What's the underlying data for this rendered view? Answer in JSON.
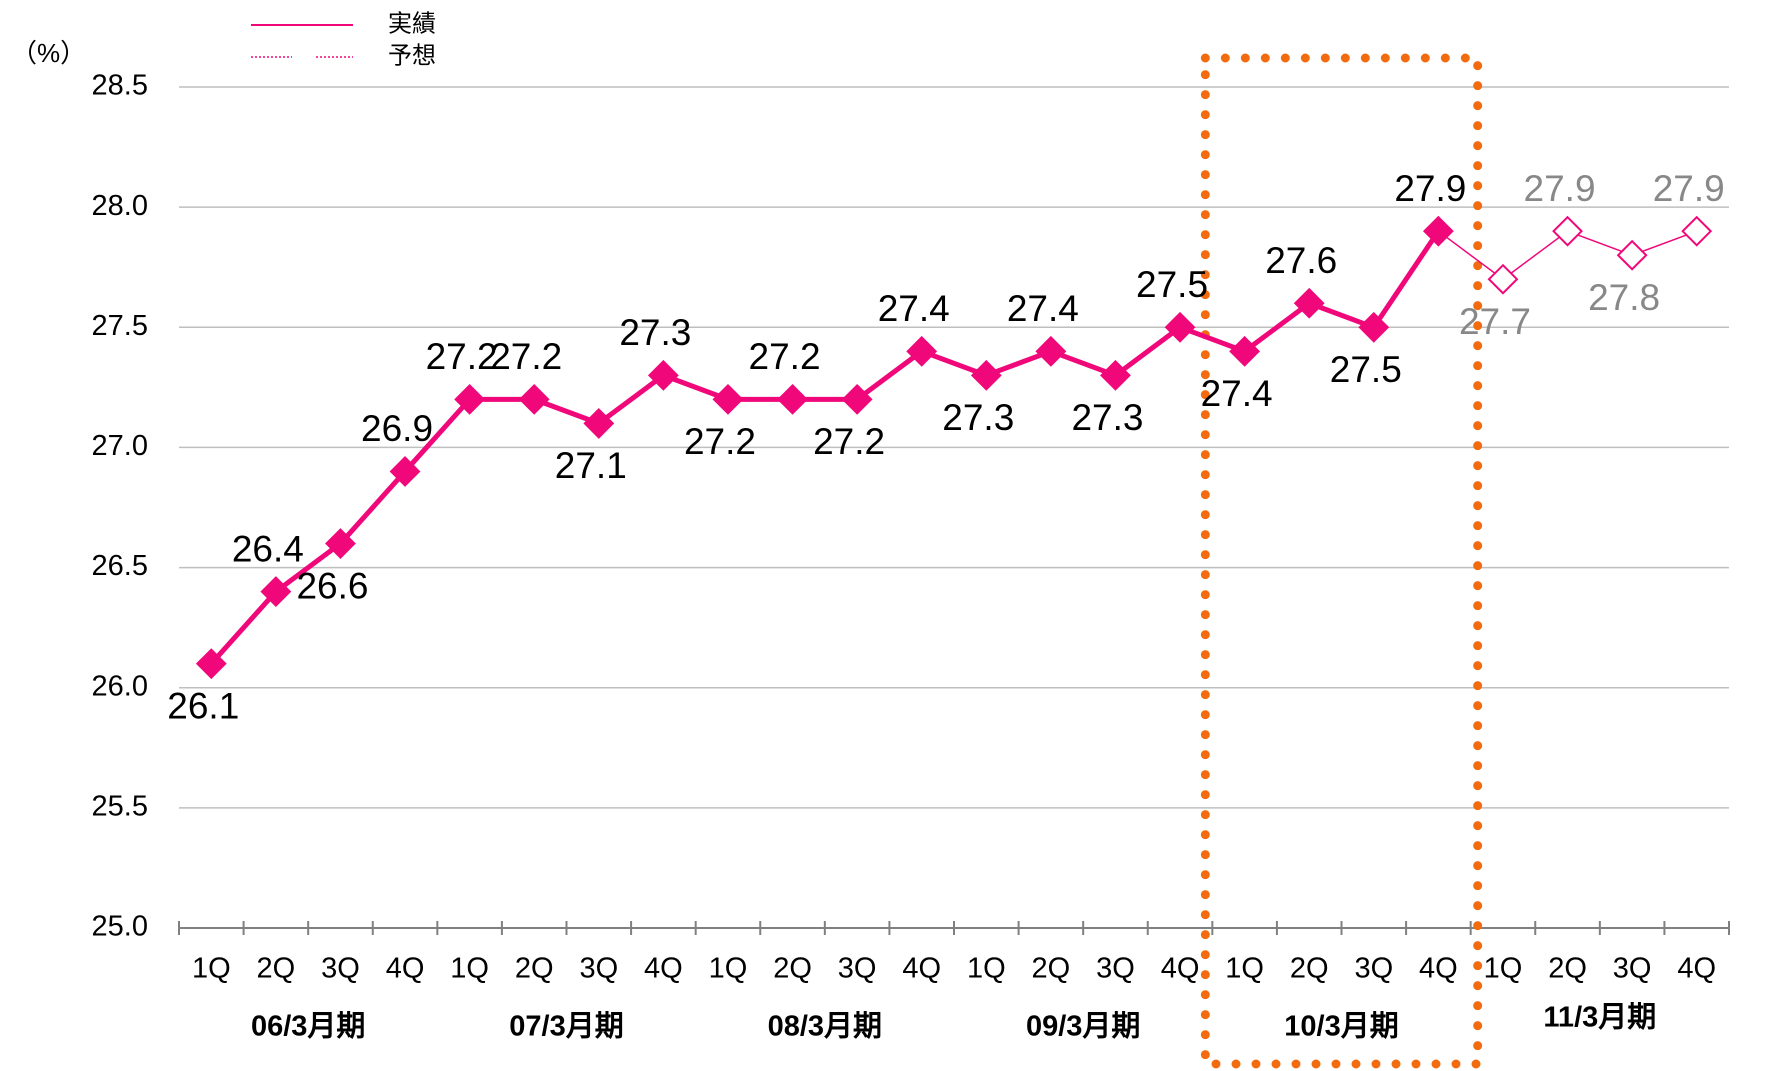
{
  "chart_data": {
    "type": "line",
    "y_label": "（%）",
    "categories": [
      "1Q",
      "2Q",
      "3Q",
      "4Q",
      "1Q",
      "2Q",
      "3Q",
      "4Q",
      "1Q",
      "2Q",
      "3Q",
      "4Q",
      "1Q",
      "2Q",
      "3Q",
      "4Q",
      "1Q",
      "2Q",
      "3Q",
      "4Q",
      "1Q",
      "2Q",
      "3Q",
      "4Q"
    ],
    "groups": [
      "06/3月期",
      "07/3月期",
      "08/3月期",
      "09/3月期",
      "10/3月期",
      "11/3月期"
    ],
    "series": [
      {
        "name": "実績",
        "color": "#f0087a",
        "values": [
          26.1,
          26.4,
          26.6,
          26.9,
          27.2,
          27.2,
          27.1,
          27.3,
          27.2,
          27.2,
          27.2,
          27.4,
          27.3,
          27.4,
          27.3,
          27.5,
          27.4,
          27.6,
          27.5,
          27.9,
          null,
          null,
          null,
          null
        ]
      },
      {
        "name": "予想",
        "color": "#f0087a",
        "label_color": "#888888",
        "values": [
          null,
          null,
          null,
          null,
          null,
          null,
          null,
          null,
          null,
          null,
          null,
          null,
          null,
          null,
          null,
          null,
          null,
          null,
          null,
          27.9,
          27.7,
          27.9,
          27.8,
          27.9
        ]
      }
    ],
    "ylim": [
      25.0,
      28.5
    ],
    "yticks": [
      {
        "value": 25,
        "label": "25.0"
      },
      25.5,
      {
        "value": 26,
        "label": "26.0"
      },
      26.5,
      {
        "value": 27,
        "label": "27.0"
      },
      27.5,
      {
        "value": 28,
        "label": "28.0"
      },
      28.5
    ],
    "grid": true,
    "highlight_group": 4,
    "highlight_color": "#f26b0f"
  }
}
